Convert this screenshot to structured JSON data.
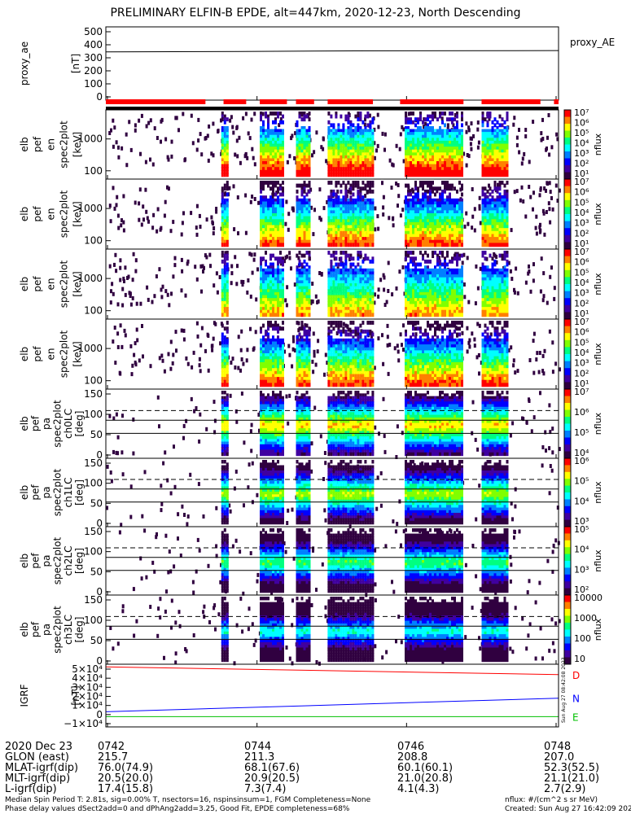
{
  "title": "PRELIMINARY ELFIN-B EPDE, alt=447km, 2020-12-23, North Descending",
  "chart_data": {
    "type": "heatmap",
    "panels": [
      {
        "id": "ae",
        "type": "line",
        "ylabel": [
          "proxy_ae",
          "[nT]"
        ],
        "yticks": [
          "500",
          "400",
          "300",
          "200",
          "100",
          "0"
        ],
        "ylim": [
          0,
          500
        ],
        "legend": "proxy_AE",
        "values": [
          {
            "t": 0,
            "v": 380
          },
          {
            "t": 0.3,
            "v": 383
          },
          {
            "t": 0.55,
            "v": 388
          },
          {
            "t": 1,
            "v": 390
          }
        ]
      },
      {
        "id": "spec1",
        "type": "spectrogram",
        "ylabel": [
          "elb",
          "pef",
          "en",
          "spec2plot",
          "[keV]"
        ],
        "yticks": [
          "1000",
          "100"
        ],
        "cbar_ticks": [
          "10⁷",
          "10⁶",
          "10⁵",
          "10⁴",
          "10³",
          "10²",
          "10¹"
        ],
        "cbar_label": "nflux"
      },
      {
        "id": "spec2",
        "type": "spectrogram",
        "ylabel": [
          "elb",
          "pef",
          "en",
          "spec2plot",
          "[keV]"
        ],
        "yticks": [
          "1000",
          "100"
        ],
        "cbar_ticks": [
          "10⁷",
          "10⁶",
          "10⁵",
          "10⁴",
          "10³",
          "10²",
          "10¹"
        ],
        "cbar_label": "nflux"
      },
      {
        "id": "spec3",
        "type": "spectrogram",
        "ylabel": [
          "elb",
          "pef",
          "en",
          "spec2plot",
          "[keV]"
        ],
        "yticks": [
          "1000",
          "100"
        ],
        "cbar_ticks": [
          "10⁷",
          "10⁶",
          "10⁵",
          "10⁴",
          "10³",
          "10²",
          "10¹"
        ],
        "cbar_label": "nflux"
      },
      {
        "id": "spec4",
        "type": "spectrogram",
        "ylabel": [
          "elb",
          "pef",
          "en",
          "spec2plot",
          "[keV]"
        ],
        "yticks": [
          "1000",
          "100"
        ],
        "cbar_ticks": [
          "10⁷",
          "10⁶",
          "10⁵",
          "10⁴",
          "10³",
          "10²",
          "10¹"
        ],
        "cbar_label": "nflux"
      },
      {
        "id": "pa0",
        "type": "pitch_angle",
        "ylabel": [
          "elb",
          "pef",
          "pa",
          "spec2plot",
          "ch0LC",
          "[deg]"
        ],
        "yticks": [
          "150",
          "100",
          "50",
          "0"
        ],
        "cbar_ticks": [
          "10⁷",
          "10⁶",
          "10⁵",
          "10⁴"
        ],
        "cbar_label": "nflux"
      },
      {
        "id": "pa1",
        "type": "pitch_angle",
        "ylabel": [
          "elb",
          "pef",
          "pa",
          "spec2plot",
          "ch1LC",
          "[deg]"
        ],
        "yticks": [
          "150",
          "100",
          "50",
          "0"
        ],
        "cbar_ticks": [
          "10⁶",
          "10⁵",
          "10⁴",
          "10³"
        ],
        "cbar_label": "nflux"
      },
      {
        "id": "pa2",
        "type": "pitch_angle",
        "ylabel": [
          "elb",
          "pef",
          "pa",
          "spec2plot",
          "ch2LC",
          "[deg]"
        ],
        "yticks": [
          "150",
          "100",
          "50",
          "0"
        ],
        "cbar_ticks": [
          "10⁵",
          "10⁴",
          "10³",
          "10²"
        ],
        "cbar_label": "nflux"
      },
      {
        "id": "pa3",
        "type": "pitch_angle",
        "ylabel": [
          "elb",
          "pef",
          "pa",
          "spec2plot",
          "ch3LC",
          "[deg]"
        ],
        "yticks": [
          "150",
          "100",
          "50",
          "0"
        ],
        "cbar_ticks": [
          "10000",
          "1000",
          "100",
          "10"
        ],
        "cbar_label": "nflux"
      },
      {
        "id": "igrf",
        "type": "line",
        "ylabel": [
          "IGRF",
          "[nT]"
        ],
        "yticks": [
          "5×10⁴",
          "4×10⁴",
          "3×10⁴",
          "2×10⁴",
          "1×10⁴",
          "0",
          "−1×10⁴"
        ],
        "ylim": [
          -10000,
          50000
        ],
        "series": [
          {
            "name": "D",
            "color": "#ff0000",
            "values": [
              47500,
              40000
            ]
          },
          {
            "name": "N",
            "color": "#0000ff",
            "values": [
              4500,
              17500
            ]
          },
          {
            "name": "E",
            "color": "#00c000",
            "values": [
              -200,
              -200
            ]
          }
        ]
      }
    ],
    "x_ticks": [
      "0742",
      "0744",
      "0746",
      "0748"
    ],
    "sci_zone_bars": [
      [
        0.0,
        0.22
      ],
      [
        0.26,
        0.31
      ],
      [
        0.34,
        0.4
      ],
      [
        0.42,
        0.46
      ],
      [
        0.49,
        0.59
      ],
      [
        0.65,
        0.79
      ],
      [
        0.83,
        0.96
      ],
      [
        0.99,
        1.0
      ]
    ],
    "colorbar_colors": [
      "#ff0000",
      "#ff8000",
      "#ffff00",
      "#80ff00",
      "#00ff80",
      "#00ffff",
      "#0080ff",
      "#0000ff",
      "#4000a0",
      "#300040"
    ]
  },
  "bottom": {
    "rows": [
      {
        "label": "2020 Dec 23",
        "vals": [
          "0742",
          "0744",
          "0746",
          "0748"
        ]
      },
      {
        "label": "GLON (east)",
        "vals": [
          "215.7",
          "211.3",
          "208.8",
          "207.0"
        ]
      },
      {
        "label": "MLAT-igrf(dip)",
        "vals": [
          "76.0(74.9)",
          "68.1(67.6)",
          "60.1(60.1)",
          "52.3(52.5)"
        ]
      },
      {
        "label": "MLT-igrf(dip)",
        "vals": [
          "20.5(20.0)",
          "20.9(20.5)",
          "21.0(20.8)",
          "21.1(21.0)"
        ]
      },
      {
        "label": "L-igrf(dip)",
        "vals": [
          "17.4(15.8)",
          "7.3(7.4)",
          "4.1(4.3)",
          "2.7(2.9)"
        ]
      }
    ],
    "foot_left_1": "Median Spin Period T: 2.81s, sig=0.00% T, nsectors=16, nspinsinsum=1, FGM Completeness=None",
    "foot_left_2": "Phase delay values dSect2add=0 and dPhAng2add=3.25, Good Fit, EPDE completeness=68%",
    "foot_right_1": "nflux: #/(cm^2 s sr MeV)",
    "foot_right_2": "Created: Sun Aug 27 16:42:09 2023",
    "vertical_stamp": "Sun Aug 27 08:42:08 2023"
  }
}
